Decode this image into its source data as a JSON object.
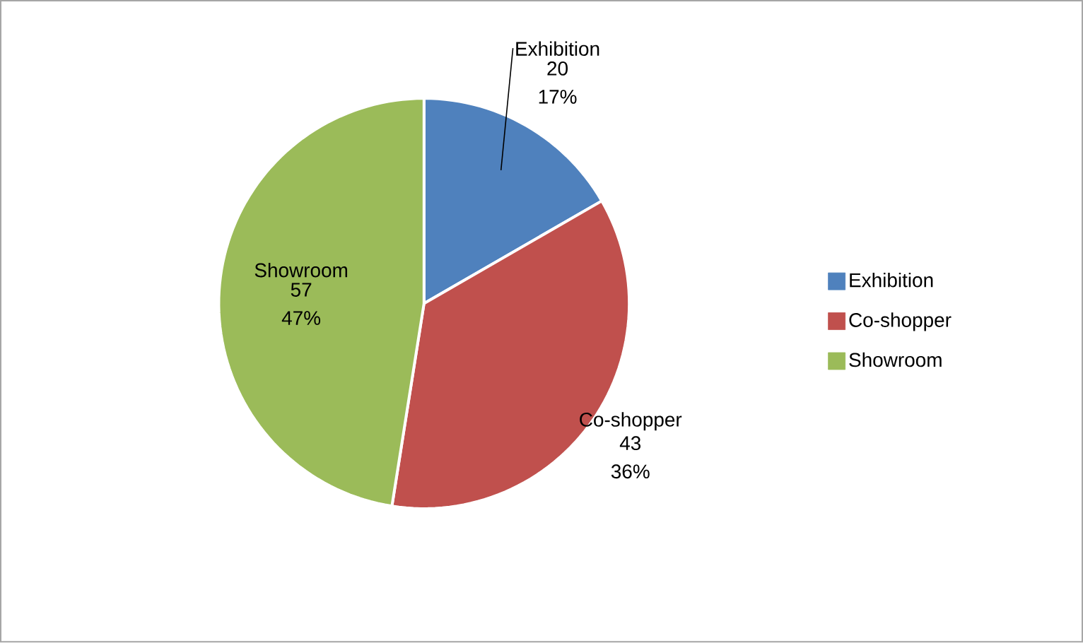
{
  "chart_data": {
    "type": "pie",
    "categories": [
      "Exhibition",
      "Co-shopper",
      "Showroom"
    ],
    "values": [
      20,
      43,
      57
    ],
    "colors": [
      "#4f81bd",
      "#c0504d",
      "#9bbb59"
    ],
    "value_labels": [
      "20 17%",
      "43 36%",
      "57 47%"
    ],
    "legend": "right"
  }
}
